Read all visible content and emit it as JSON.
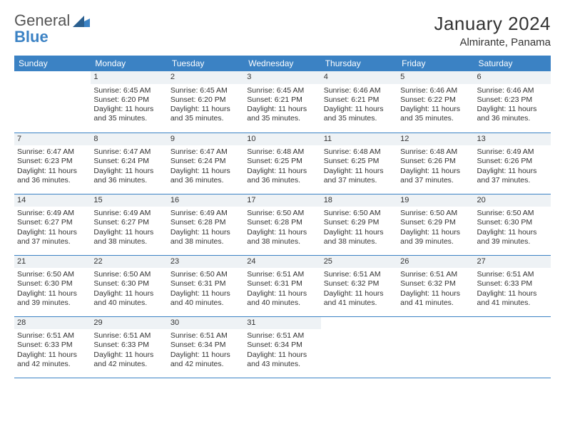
{
  "brand": {
    "text1": "General",
    "text2": "Blue"
  },
  "title": "January 2024",
  "location": "Almirante, Panama",
  "colors": {
    "header_bg": "#3b82c4",
    "header_text": "#ffffff",
    "daynum_bg": "#eef2f5",
    "border": "#3b82c4",
    "logo_gray": "#555555",
    "logo_blue": "#3b82c4",
    "body_text": "#333333",
    "page_bg": "#ffffff"
  },
  "daysOfWeek": [
    "Sunday",
    "Monday",
    "Tuesday",
    "Wednesday",
    "Thursday",
    "Friday",
    "Saturday"
  ],
  "weeks": [
    [
      null,
      {
        "n": "1",
        "sr": "Sunrise: 6:45 AM",
        "ss": "Sunset: 6:20 PM",
        "d1": "Daylight: 11 hours",
        "d2": "and 35 minutes."
      },
      {
        "n": "2",
        "sr": "Sunrise: 6:45 AM",
        "ss": "Sunset: 6:20 PM",
        "d1": "Daylight: 11 hours",
        "d2": "and 35 minutes."
      },
      {
        "n": "3",
        "sr": "Sunrise: 6:45 AM",
        "ss": "Sunset: 6:21 PM",
        "d1": "Daylight: 11 hours",
        "d2": "and 35 minutes."
      },
      {
        "n": "4",
        "sr": "Sunrise: 6:46 AM",
        "ss": "Sunset: 6:21 PM",
        "d1": "Daylight: 11 hours",
        "d2": "and 35 minutes."
      },
      {
        "n": "5",
        "sr": "Sunrise: 6:46 AM",
        "ss": "Sunset: 6:22 PM",
        "d1": "Daylight: 11 hours",
        "d2": "and 35 minutes."
      },
      {
        "n": "6",
        "sr": "Sunrise: 6:46 AM",
        "ss": "Sunset: 6:23 PM",
        "d1": "Daylight: 11 hours",
        "d2": "and 36 minutes."
      }
    ],
    [
      {
        "n": "7",
        "sr": "Sunrise: 6:47 AM",
        "ss": "Sunset: 6:23 PM",
        "d1": "Daylight: 11 hours",
        "d2": "and 36 minutes."
      },
      {
        "n": "8",
        "sr": "Sunrise: 6:47 AM",
        "ss": "Sunset: 6:24 PM",
        "d1": "Daylight: 11 hours",
        "d2": "and 36 minutes."
      },
      {
        "n": "9",
        "sr": "Sunrise: 6:47 AM",
        "ss": "Sunset: 6:24 PM",
        "d1": "Daylight: 11 hours",
        "d2": "and 36 minutes."
      },
      {
        "n": "10",
        "sr": "Sunrise: 6:48 AM",
        "ss": "Sunset: 6:25 PM",
        "d1": "Daylight: 11 hours",
        "d2": "and 36 minutes."
      },
      {
        "n": "11",
        "sr": "Sunrise: 6:48 AM",
        "ss": "Sunset: 6:25 PM",
        "d1": "Daylight: 11 hours",
        "d2": "and 37 minutes."
      },
      {
        "n": "12",
        "sr": "Sunrise: 6:48 AM",
        "ss": "Sunset: 6:26 PM",
        "d1": "Daylight: 11 hours",
        "d2": "and 37 minutes."
      },
      {
        "n": "13",
        "sr": "Sunrise: 6:49 AM",
        "ss": "Sunset: 6:26 PM",
        "d1": "Daylight: 11 hours",
        "d2": "and 37 minutes."
      }
    ],
    [
      {
        "n": "14",
        "sr": "Sunrise: 6:49 AM",
        "ss": "Sunset: 6:27 PM",
        "d1": "Daylight: 11 hours",
        "d2": "and 37 minutes."
      },
      {
        "n": "15",
        "sr": "Sunrise: 6:49 AM",
        "ss": "Sunset: 6:27 PM",
        "d1": "Daylight: 11 hours",
        "d2": "and 38 minutes."
      },
      {
        "n": "16",
        "sr": "Sunrise: 6:49 AM",
        "ss": "Sunset: 6:28 PM",
        "d1": "Daylight: 11 hours",
        "d2": "and 38 minutes."
      },
      {
        "n": "17",
        "sr": "Sunrise: 6:50 AM",
        "ss": "Sunset: 6:28 PM",
        "d1": "Daylight: 11 hours",
        "d2": "and 38 minutes."
      },
      {
        "n": "18",
        "sr": "Sunrise: 6:50 AM",
        "ss": "Sunset: 6:29 PM",
        "d1": "Daylight: 11 hours",
        "d2": "and 38 minutes."
      },
      {
        "n": "19",
        "sr": "Sunrise: 6:50 AM",
        "ss": "Sunset: 6:29 PM",
        "d1": "Daylight: 11 hours",
        "d2": "and 39 minutes."
      },
      {
        "n": "20",
        "sr": "Sunrise: 6:50 AM",
        "ss": "Sunset: 6:30 PM",
        "d1": "Daylight: 11 hours",
        "d2": "and 39 minutes."
      }
    ],
    [
      {
        "n": "21",
        "sr": "Sunrise: 6:50 AM",
        "ss": "Sunset: 6:30 PM",
        "d1": "Daylight: 11 hours",
        "d2": "and 39 minutes."
      },
      {
        "n": "22",
        "sr": "Sunrise: 6:50 AM",
        "ss": "Sunset: 6:30 PM",
        "d1": "Daylight: 11 hours",
        "d2": "and 40 minutes."
      },
      {
        "n": "23",
        "sr": "Sunrise: 6:50 AM",
        "ss": "Sunset: 6:31 PM",
        "d1": "Daylight: 11 hours",
        "d2": "and 40 minutes."
      },
      {
        "n": "24",
        "sr": "Sunrise: 6:51 AM",
        "ss": "Sunset: 6:31 PM",
        "d1": "Daylight: 11 hours",
        "d2": "and 40 minutes."
      },
      {
        "n": "25",
        "sr": "Sunrise: 6:51 AM",
        "ss": "Sunset: 6:32 PM",
        "d1": "Daylight: 11 hours",
        "d2": "and 41 minutes."
      },
      {
        "n": "26",
        "sr": "Sunrise: 6:51 AM",
        "ss": "Sunset: 6:32 PM",
        "d1": "Daylight: 11 hours",
        "d2": "and 41 minutes."
      },
      {
        "n": "27",
        "sr": "Sunrise: 6:51 AM",
        "ss": "Sunset: 6:33 PM",
        "d1": "Daylight: 11 hours",
        "d2": "and 41 minutes."
      }
    ],
    [
      {
        "n": "28",
        "sr": "Sunrise: 6:51 AM",
        "ss": "Sunset: 6:33 PM",
        "d1": "Daylight: 11 hours",
        "d2": "and 42 minutes."
      },
      {
        "n": "29",
        "sr": "Sunrise: 6:51 AM",
        "ss": "Sunset: 6:33 PM",
        "d1": "Daylight: 11 hours",
        "d2": "and 42 minutes."
      },
      {
        "n": "30",
        "sr": "Sunrise: 6:51 AM",
        "ss": "Sunset: 6:34 PM",
        "d1": "Daylight: 11 hours",
        "d2": "and 42 minutes."
      },
      {
        "n": "31",
        "sr": "Sunrise: 6:51 AM",
        "ss": "Sunset: 6:34 PM",
        "d1": "Daylight: 11 hours",
        "d2": "and 43 minutes."
      },
      null,
      null,
      null
    ]
  ]
}
